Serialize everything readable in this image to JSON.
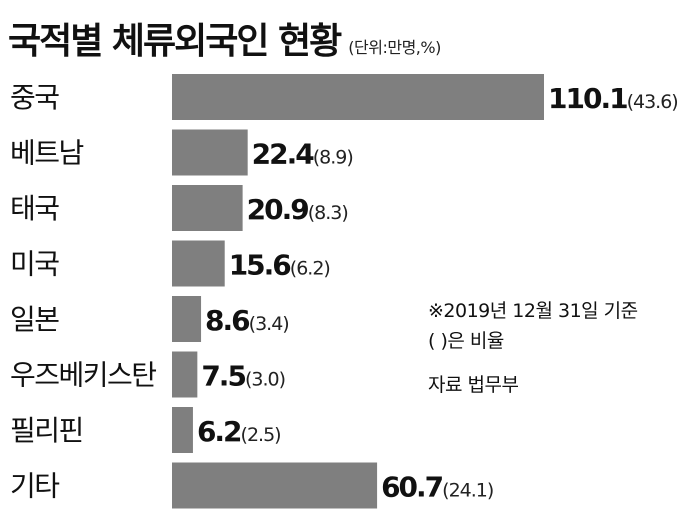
{
  "chart_data": {
    "type": "bar",
    "orientation": "horizontal",
    "title": "국적별 체류외국인 현황",
    "unit_note": "(단위:만명,%)",
    "categories": [
      "중국",
      "베트남",
      "태국",
      "미국",
      "일본",
      "우즈베키스탄",
      "필리핀",
      "기타"
    ],
    "values": [
      110.1,
      22.4,
      20.9,
      15.6,
      8.6,
      7.5,
      6.2,
      60.7
    ],
    "value_labels": [
      "110.1",
      "22.4",
      "20.9",
      "15.6",
      "8.6",
      "7.5",
      "6.2",
      "60.7"
    ],
    "percent_labels": [
      "(43.6)",
      "(8.9)",
      "(8.3)",
      "(6.2)",
      "(3.4)",
      "(3.0)",
      "(2.5)",
      "(24.1)"
    ],
    "bar_color": "#7f7f7f",
    "grid": false,
    "legend": false
  },
  "notes": {
    "date_basis": "※2019년 12월 31일 기준",
    "ratio_note": "( )은 비율",
    "source": "자료 법무부"
  }
}
